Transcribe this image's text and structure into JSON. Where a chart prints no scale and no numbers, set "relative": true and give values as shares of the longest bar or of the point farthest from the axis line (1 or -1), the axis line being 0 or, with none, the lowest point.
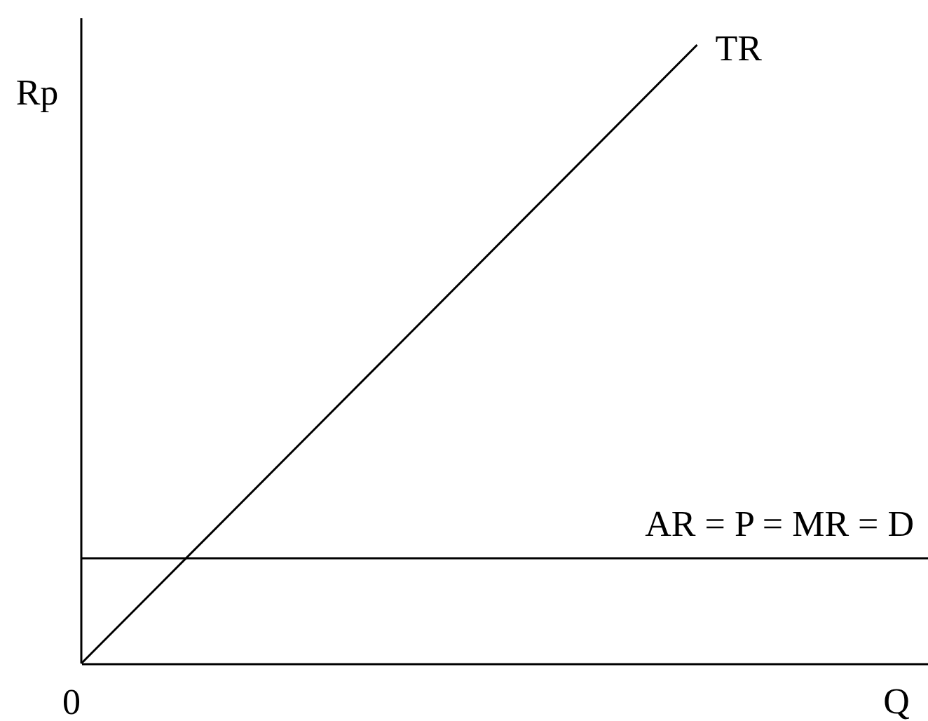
{
  "chart_data": {
    "type": "line",
    "relative": true,
    "ylabel": "Rp",
    "xlabel": "Q",
    "annotations": [
      "0"
    ],
    "categories": [
      null,
      null,
      null,
      null,
      null,
      null,
      null,
      null,
      null,
      null,
      null,
      null
    ],
    "series": [
      {
        "name": "TR",
        "color": "#000000",
        "values": [
          0,
          0.125,
          0.25,
          0.375,
          0.5,
          0.625,
          0.75,
          0.875,
          1,
          null,
          null,
          null
        ]
      },
      {
        "name": "AR = P = MR = D",
        "color": "#000000",
        "values": [
          0.17,
          0.17,
          0.17,
          0.17,
          0.17,
          0.17,
          0.17,
          0.17,
          0.17,
          0.17,
          0.17,
          0.17
        ]
      }
    ]
  }
}
